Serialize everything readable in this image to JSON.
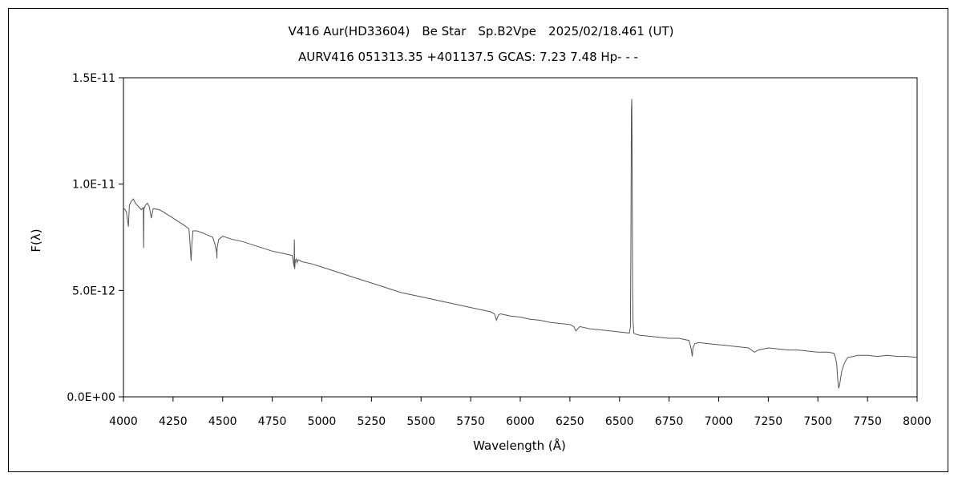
{
  "chart_data": {
    "type": "line",
    "title": "V416 Aur(HD33604)　Be Star　Sp.B2Vpe　2025/02/18.461 (UT)",
    "subtitle": "AURV416 051313.35 +401137.5 GCAS: 7.23 7.48 Hp- - -",
    "xlabel": "Wavelength (Å)",
    "ylabel": "F(λ)",
    "xlim": [
      4000,
      8000
    ],
    "ylim": [
      0,
      1.5e-11
    ],
    "x_ticks": [
      4000,
      4250,
      4500,
      4750,
      5000,
      5250,
      5500,
      5750,
      6000,
      6250,
      6500,
      6750,
      7000,
      7250,
      7500,
      7750,
      8000
    ],
    "x_tick_labels": [
      "4000",
      "4250",
      "4500",
      "4750",
      "5000",
      "5250",
      "5500",
      "5750",
      "6000",
      "6250",
      "6500",
      "6750",
      "7000",
      "7250",
      "7500",
      "7750",
      "8000"
    ],
    "y_ticks": [
      0,
      5e-12,
      1e-11,
      1.5e-11
    ],
    "y_tick_labels": [
      "0.0E+00",
      "5.0E-12",
      "1.0E-11",
      "1.5E-11"
    ],
    "grid": false,
    "line_color": "#555555",
    "series": [
      {
        "x": [
          4000,
          4015,
          4025,
          4030,
          4040,
          4050,
          4060,
          4070,
          4080,
          4090,
          4100,
          4101,
          4102,
          4103,
          4110,
          4120,
          4130,
          4140,
          4150,
          4180,
          4200,
          4250,
          4300,
          4330,
          4335,
          4340,
          4341,
          4345,
          4350,
          4370,
          4400,
          4450,
          4460,
          4470,
          4471,
          4472,
          4480,
          4500,
          4550,
          4600,
          4650,
          4700,
          4750,
          4800,
          4850,
          4855,
          4860,
          4861,
          4862,
          4863,
          4865,
          4870,
          4875,
          4880,
          4900,
          4950,
          5000,
          5050,
          5100,
          5150,
          5200,
          5250,
          5300,
          5350,
          5400,
          5450,
          5500,
          5550,
          5600,
          5650,
          5700,
          5750,
          5800,
          5850,
          5870,
          5880,
          5890,
          5900,
          5950,
          6000,
          6050,
          6100,
          6150,
          6200,
          6250,
          6270,
          6280,
          6300,
          6350,
          6400,
          6450,
          6500,
          6550,
          6555,
          6558,
          6560,
          6562,
          6563,
          6564,
          6566,
          6568,
          6572,
          6580,
          6600,
          6650,
          6700,
          6750,
          6800,
          6850,
          6860,
          6867,
          6870,
          6880,
          6900,
          6950,
          7000,
          7050,
          7100,
          7150,
          7180,
          7200,
          7250,
          7300,
          7350,
          7400,
          7450,
          7500,
          7550,
          7580,
          7590,
          7595,
          7600,
          7605,
          7610,
          7615,
          7620,
          7630,
          7640,
          7650,
          7680,
          7700,
          7750,
          7800,
          7850,
          7900,
          7950,
          8000
        ],
        "y": [
          8.9e-12,
          8.7e-12,
          8e-12,
          9e-12,
          9.2e-12,
          9.3e-12,
          9.1e-12,
          9e-12,
          8.9e-12,
          8.8e-12,
          8.9e-12,
          7.5e-12,
          7e-12,
          8.8e-12,
          9e-12,
          9.1e-12,
          8.95e-12,
          8.4e-12,
          8.85e-12,
          8.8e-12,
          8.7e-12,
          8.4e-12,
          8.1e-12,
          7.9e-12,
          7.3e-12,
          6.5e-12,
          6.4e-12,
          7.2e-12,
          7.8e-12,
          7.8e-12,
          7.7e-12,
          7.5e-12,
          7.2e-12,
          6.8e-12,
          6.5e-12,
          7e-12,
          7.4e-12,
          7.55e-12,
          7.4e-12,
          7.3e-12,
          7.15e-12,
          7e-12,
          6.85e-12,
          6.75e-12,
          6.65e-12,
          6.4e-12,
          6.1e-12,
          7.4e-12,
          7.2e-12,
          6e-12,
          6.3e-12,
          6.5e-12,
          6.3e-12,
          6.45e-12,
          6.35e-12,
          6.25e-12,
          6.1e-12,
          5.95e-12,
          5.8e-12,
          5.65e-12,
          5.5e-12,
          5.35e-12,
          5.2e-12,
          5.05e-12,
          4.9e-12,
          4.8e-12,
          4.7e-12,
          4.6e-12,
          4.5e-12,
          4.4e-12,
          4.3e-12,
          4.2e-12,
          4.1e-12,
          4e-12,
          3.9e-12,
          3.6e-12,
          3.85e-12,
          3.9e-12,
          3.8e-12,
          3.75e-12,
          3.65e-12,
          3.6e-12,
          3.5e-12,
          3.45e-12,
          3.4e-12,
          3.3e-12,
          3.1e-12,
          3.3e-12,
          3.2e-12,
          3.15e-12,
          3.1e-12,
          3.05e-12,
          3e-12,
          3.3e-12,
          8e-12,
          1.35e-11,
          1.4e-11,
          1.3e-11,
          1e-11,
          5e-12,
          3.6e-12,
          3e-12,
          2.95e-12,
          2.9e-12,
          2.85e-12,
          2.8e-12,
          2.75e-12,
          2.75e-12,
          2.65e-12,
          2.3e-12,
          1.9e-12,
          2.3e-12,
          2.5e-12,
          2.55e-12,
          2.5e-12,
          2.45e-12,
          2.4e-12,
          2.35e-12,
          2.3e-12,
          2.1e-12,
          2.2e-12,
          2.3e-12,
          2.25e-12,
          2.2e-12,
          2.2e-12,
          2.15e-12,
          2.1e-12,
          2.1e-12,
          2.05e-12,
          1.8e-12,
          1.5e-12,
          8e-13,
          4e-13,
          6e-13,
          9e-13,
          1.2e-12,
          1.5e-12,
          1.7e-12,
          1.85e-12,
          1.9e-12,
          1.95e-12,
          1.95e-12,
          1.9e-12,
          1.95e-12,
          1.9e-12,
          1.9e-12,
          1.85e-12
        ]
      }
    ]
  }
}
